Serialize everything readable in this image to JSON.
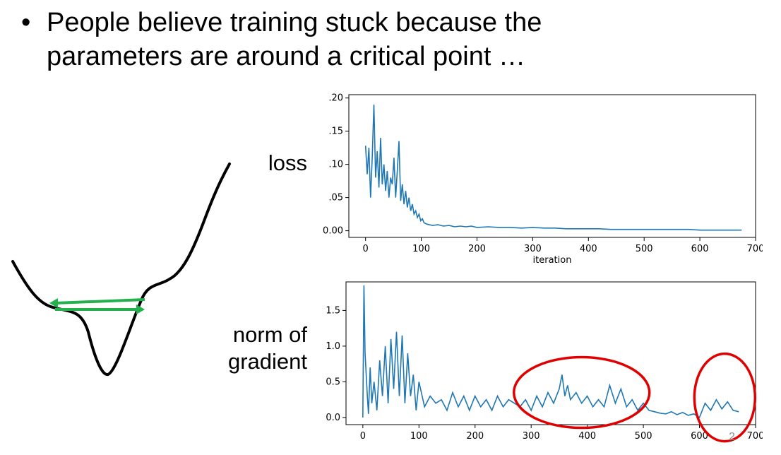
{
  "slide": {
    "bullet": "•",
    "text": "People believe training stuck because the\nparameters are around a critical point …",
    "page_number": "2"
  },
  "labels": {
    "loss": "loss",
    "norm_line1": "norm of",
    "norm_line2": "gradient"
  },
  "colors": {
    "line": "#1f77b4",
    "arrow": "#22b14c",
    "circle": "#e00000",
    "curve": "#000000"
  },
  "chart_data": [
    {
      "type": "line",
      "ylabel": "",
      "xlabel": "iteration",
      "xlim": [
        -30,
        700
      ],
      "ylim": [
        -0.01,
        0.205
      ],
      "xticks": [
        0,
        100,
        200,
        300,
        400,
        500,
        600,
        700
      ],
      "xtick_labels": [
        "0",
        "100",
        "200",
        "300",
        "400",
        "500",
        "600",
        "700"
      ],
      "yticks": [
        0.0,
        0.05,
        0.1,
        0.15,
        0.2
      ],
      "ytick_labels": [
        "0.00",
        ".05",
        ".10",
        ".15",
        ".20"
      ],
      "series": [
        {
          "x": [
            0,
            3,
            6,
            9,
            12,
            15,
            18,
            21,
            24,
            27,
            30,
            33,
            36,
            39,
            42,
            45,
            48,
            51,
            54,
            57,
            60,
            63,
            66,
            69,
            72,
            75,
            78,
            81,
            84,
            87,
            90,
            93,
            96,
            99,
            102,
            105,
            110,
            120,
            130,
            140,
            150,
            160,
            170,
            180,
            190,
            200,
            220,
            240,
            260,
            280,
            300,
            320,
            340,
            360,
            380,
            400,
            420,
            440,
            460,
            480,
            500,
            520,
            540,
            560,
            580,
            600,
            620,
            640,
            660,
            675
          ],
          "y": [
            0.128,
            0.085,
            0.125,
            0.05,
            0.11,
            0.19,
            0.08,
            0.12,
            0.065,
            0.14,
            0.07,
            0.1,
            0.06,
            0.09,
            0.05,
            0.08,
            0.07,
            0.11,
            0.05,
            0.09,
            0.135,
            0.045,
            0.07,
            0.04,
            0.06,
            0.035,
            0.05,
            0.03,
            0.04,
            0.025,
            0.03,
            0.02,
            0.025,
            0.015,
            0.018,
            0.012,
            0.01,
            0.008,
            0.009,
            0.007,
            0.008,
            0.006,
            0.007,
            0.006,
            0.007,
            0.005,
            0.006,
            0.005,
            0.005,
            0.004,
            0.005,
            0.004,
            0.004,
            0.003,
            0.003,
            0.003,
            0.003,
            0.002,
            0.002,
            0.002,
            0.002,
            0.002,
            0.002,
            0.002,
            0.002,
            0.001,
            0.001,
            0.001,
            0.001,
            0.001
          ]
        }
      ]
    },
    {
      "type": "line",
      "xlabel": "",
      "ylabel": "",
      "xlim": [
        -30,
        700
      ],
      "ylim": [
        -0.1,
        1.9
      ],
      "xticks": [
        0,
        100,
        200,
        300,
        400,
        500,
        600,
        700
      ],
      "xtick_labels": [
        "0",
        "100",
        "200",
        "300",
        "400",
        "500",
        "600",
        "700"
      ],
      "yticks": [
        0.0,
        0.5,
        1.0,
        1.5
      ],
      "ytick_labels": [
        "0.0",
        "0.5",
        "1.0",
        "1.5"
      ],
      "series": [
        {
          "x": [
            0,
            2,
            4,
            6,
            8,
            10,
            13,
            16,
            20,
            25,
            30,
            35,
            40,
            45,
            50,
            55,
            60,
            65,
            70,
            75,
            80,
            85,
            90,
            95,
            100,
            110,
            120,
            130,
            140,
            150,
            160,
            170,
            180,
            190,
            200,
            210,
            220,
            230,
            240,
            250,
            260,
            270,
            280,
            290,
            300,
            310,
            320,
            330,
            340,
            350,
            355,
            360,
            365,
            370,
            380,
            390,
            400,
            410,
            420,
            430,
            440,
            450,
            460,
            470,
            480,
            490,
            500,
            510,
            520,
            530,
            540,
            550,
            560,
            570,
            580,
            590,
            600,
            610,
            620,
            630,
            640,
            650,
            660,
            670
          ],
          "y": [
            0.0,
            1.85,
            0.9,
            0.6,
            0.3,
            0.05,
            0.7,
            0.2,
            0.5,
            0.1,
            0.8,
            0.3,
            1.0,
            0.2,
            1.1,
            0.4,
            1.2,
            0.3,
            1.15,
            0.2,
            0.9,
            0.3,
            0.6,
            0.1,
            0.5,
            0.15,
            0.3,
            0.2,
            0.25,
            0.1,
            0.35,
            0.15,
            0.3,
            0.1,
            0.3,
            0.15,
            0.25,
            0.1,
            0.3,
            0.15,
            0.25,
            0.2,
            0.15,
            0.25,
            0.1,
            0.3,
            0.15,
            0.35,
            0.2,
            0.4,
            0.6,
            0.3,
            0.45,
            0.25,
            0.35,
            0.2,
            0.3,
            0.15,
            0.25,
            0.15,
            0.45,
            0.2,
            0.4,
            0.15,
            0.25,
            0.1,
            0.2,
            0.1,
            0.08,
            0.06,
            0.05,
            0.08,
            0.04,
            0.07,
            0.03,
            0.05,
            0.0,
            0.2,
            0.1,
            0.25,
            0.12,
            0.22,
            0.1,
            0.08
          ]
        }
      ]
    }
  ]
}
